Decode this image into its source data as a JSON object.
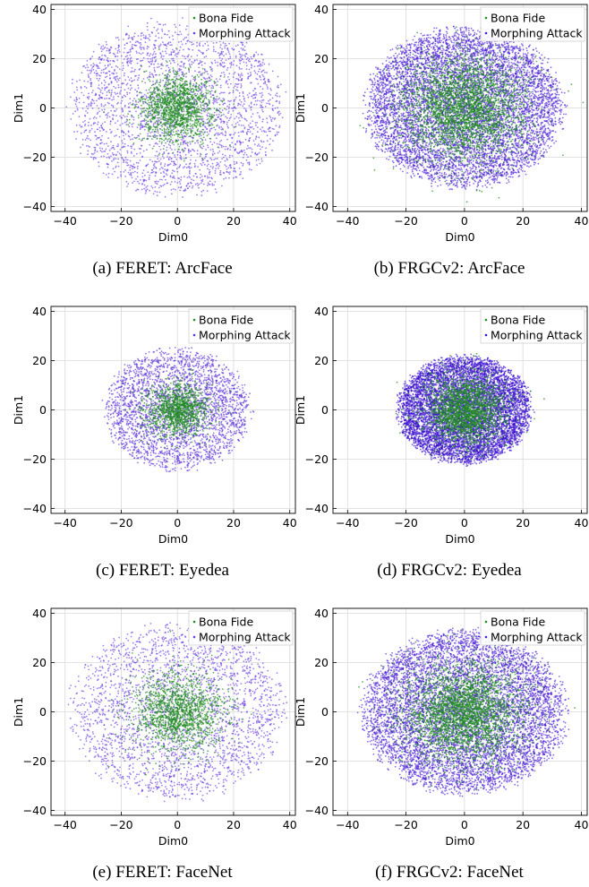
{
  "chart_data": [
    {
      "type": "scatter",
      "caption": "(a) FERET: ArcFace",
      "xlabel": "Dim0",
      "ylabel": "Dim1",
      "xlim": [
        -45,
        42
      ],
      "ylim": [
        -42,
        42
      ],
      "xticks": [
        -40,
        -20,
        0,
        20,
        40
      ],
      "yticks": [
        -40,
        -20,
        0,
        20,
        40
      ],
      "grid": true,
      "legend_position": "top-right",
      "series": [
        {
          "name": "Bona Fide",
          "color": "#1f8c1f",
          "distribution": {
            "center": [
              0,
              0
            ],
            "radius": 15,
            "count": 1400
          }
        },
        {
          "name": "Morphing Attack",
          "color": "#6a3ee0",
          "distribution": {
            "center": [
              0,
              0
            ],
            "radius": 38,
            "count": 2600
          }
        }
      ]
    },
    {
      "type": "scatter",
      "caption": "(b) FRGCv2: ArcFace",
      "xlabel": "Dim0",
      "ylabel": "Dim1",
      "xlim": [
        -45,
        42
      ],
      "ylim": [
        -42,
        42
      ],
      "xticks": [
        -40,
        -20,
        0,
        20,
        40
      ],
      "yticks": [
        -40,
        -20,
        0,
        20,
        40
      ],
      "grid": true,
      "legend_position": "top-right",
      "series": [
        {
          "name": "Bona Fide",
          "color": "#1f8c1f",
          "distribution": {
            "center": [
              0,
              0
            ],
            "radius": 23,
            "count": 3000
          }
        },
        {
          "name": "Morphing Attack",
          "color": "#4a1fd6",
          "distribution": {
            "center": [
              0,
              0
            ],
            "radius": 34,
            "count": 7000
          }
        }
      ]
    },
    {
      "type": "scatter",
      "caption": "(c) FERET: Eyedea",
      "xlabel": "Dim0",
      "ylabel": "Dim1",
      "xlim": [
        -45,
        42
      ],
      "ylim": [
        -42,
        42
      ],
      "xticks": [
        -40,
        -20,
        0,
        20,
        40
      ],
      "yticks": [
        -40,
        -20,
        0,
        20,
        40
      ],
      "grid": true,
      "legend_position": "top-right",
      "series": [
        {
          "name": "Bona Fide",
          "color": "#1f8c1f",
          "distribution": {
            "center": [
              0,
              0
            ],
            "radius": 12,
            "count": 1200
          }
        },
        {
          "name": "Morphing Attack",
          "color": "#5a30d8",
          "distribution": {
            "center": [
              0,
              0
            ],
            "radius": 26,
            "count": 2800
          }
        }
      ]
    },
    {
      "type": "scatter",
      "caption": "(d) FRGCv2: Eyedea",
      "xlabel": "Dim0",
      "ylabel": "Dim1",
      "xlim": [
        -45,
        42
      ],
      "ylim": [
        -42,
        42
      ],
      "xticks": [
        -40,
        -20,
        0,
        20,
        40
      ],
      "yticks": [
        -40,
        -20,
        0,
        20,
        40
      ],
      "grid": true,
      "legend_position": "top-right",
      "series": [
        {
          "name": "Bona Fide",
          "color": "#1f8c1f",
          "distribution": {
            "center": [
              0,
              0
            ],
            "radius": 15,
            "count": 2200
          }
        },
        {
          "name": "Morphing Attack",
          "color": "#3a10d0",
          "distribution": {
            "center": [
              0,
              0
            ],
            "radius": 23,
            "count": 7000
          }
        }
      ]
    },
    {
      "type": "scatter",
      "caption": "(e) FERET: FaceNet",
      "xlabel": "Dim0",
      "ylabel": "Dim1",
      "xlim": [
        -45,
        42
      ],
      "ylim": [
        -42,
        42
      ],
      "xticks": [
        -40,
        -20,
        0,
        20,
        40
      ],
      "yticks": [
        -40,
        -20,
        0,
        20,
        40
      ],
      "grid": true,
      "legend_position": "top-right",
      "series": [
        {
          "name": "Bona Fide",
          "color": "#1f8c1f",
          "distribution": {
            "center": [
              0,
              0
            ],
            "radius": 18,
            "count": 1500
          }
        },
        {
          "name": "Morphing Attack",
          "color": "#6a3ee0",
          "distribution": {
            "center": [
              0,
              0
            ],
            "radius": 38,
            "count": 2500
          }
        }
      ]
    },
    {
      "type": "scatter",
      "caption": "(f) FRGCv2: FaceNet",
      "xlabel": "Dim0",
      "ylabel": "Dim1",
      "xlim": [
        -45,
        42
      ],
      "ylim": [
        -42,
        42
      ],
      "xticks": [
        -40,
        -20,
        0,
        20,
        40
      ],
      "yticks": [
        -40,
        -20,
        0,
        20,
        40
      ],
      "grid": true,
      "legend_position": "top-right",
      "series": [
        {
          "name": "Bona Fide",
          "color": "#1f8c1f",
          "distribution": {
            "center": [
              0,
              0
            ],
            "radius": 22,
            "count": 3000
          }
        },
        {
          "name": "Morphing Attack",
          "color": "#4a1fd6",
          "distribution": {
            "center": [
              0,
              0
            ],
            "radius": 35,
            "count": 7000
          }
        }
      ]
    }
  ]
}
